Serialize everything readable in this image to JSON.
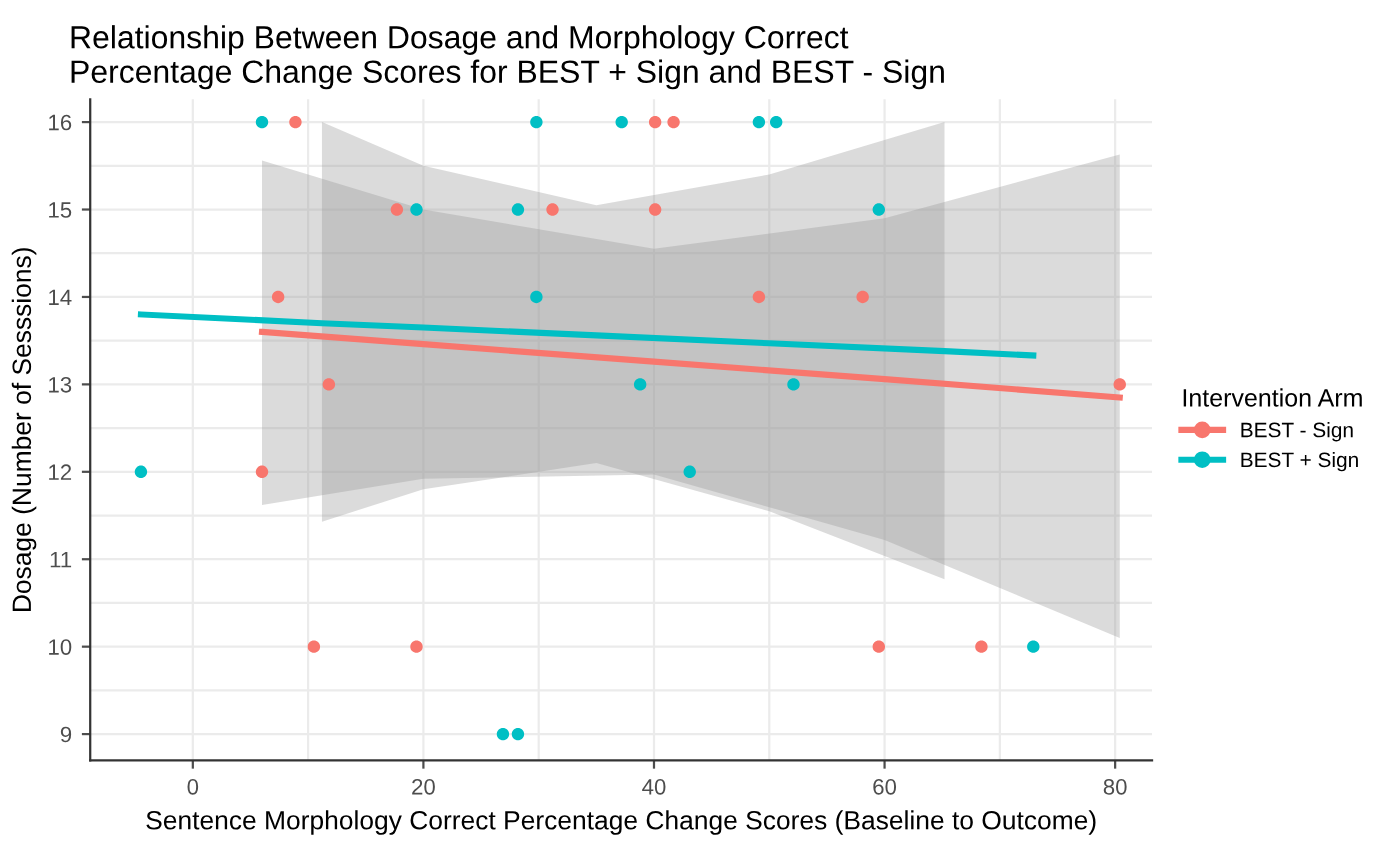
{
  "chart_data": {
    "type": "scatter",
    "title": "Relationship Between Dosage and Morphology Correct\nPercentage Change Scores for BEST + Sign and BEST - Sign",
    "xlabel": "Sentence Morphology Correct Percentage Change Scores (Baseline to Outcome)",
    "ylabel": "Dosage (Number of Sesssions)",
    "legend_title": "Intervention Arm",
    "legend": "right",
    "grid": true,
    "xlim": [
      -8.9,
      83.2
    ],
    "ylim": [
      8.7,
      16.26
    ],
    "xticks": [
      0,
      {
        "value": 10,
        "label": null
      },
      20,
      {
        "value": 30,
        "label": null
      },
      40,
      {
        "value": 50,
        "label": null
      },
      60,
      {
        "value": 70,
        "label": null
      },
      80
    ],
    "yticks": [
      9,
      {
        "value": 9.5,
        "label": null
      },
      10,
      {
        "value": 10.5,
        "label": null
      },
      11,
      {
        "value": 11.5,
        "label": null
      },
      12,
      {
        "value": 12.5,
        "label": null
      },
      13,
      {
        "value": 13.5,
        "label": null
      },
      14,
      {
        "value": 14.5,
        "label": null
      },
      15,
      {
        "value": 15.5,
        "label": null
      },
      16
    ],
    "series": [
      {
        "name": "BEST - Sign",
        "marker": "circle",
        "color": "#f8766d",
        "x": [
          8.9,
          17.7,
          31.2,
          40.1,
          41.7,
          40.1,
          7.4,
          11.8,
          49.1,
          58.1,
          6.0,
          80.4,
          10.5,
          19.4,
          59.5,
          68.4
        ],
        "values": [
          16,
          15,
          15,
          16,
          16,
          15,
          14,
          13,
          14,
          14,
          12,
          13,
          10,
          10,
          10,
          10
        ]
      },
      {
        "name": "BEST + Sign",
        "marker": "circle",
        "color": "#00bfc4",
        "x": [
          6.0,
          29.8,
          37.2,
          49.1,
          50.6,
          19.4,
          28.2,
          59.5,
          29.8,
          38.8,
          52.1,
          43.1,
          -4.5,
          26.9,
          28.2,
          72.9
        ],
        "values": [
          16,
          16,
          16,
          16,
          16,
          15,
          15,
          15,
          14,
          13,
          13,
          12,
          12,
          9,
          9,
          10
        ]
      },
      {
        "type": "line",
        "marker": "none",
        "color": "#f8766d",
        "x": [
          6,
          20,
          40,
          60,
          80.4
        ],
        "values": [
          13.6,
          13.46,
          13.26,
          13.06,
          12.85
        ],
        "lower": [
          11.62,
          11.92,
          11.97,
          11.22,
          10.1
        ],
        "upper": [
          15.56,
          15.0,
          14.55,
          14.9,
          15.63
        ]
      },
      {
        "type": "line",
        "marker": "none",
        "color": "#00bfc4",
        "x": [
          -4.5,
          11.2,
          20,
          35,
          50,
          65.2,
          72.9
        ],
        "values": [
          13.8,
          13.7,
          13.65,
          13.56,
          13.47,
          13.38,
          13.33
        ],
        "lower": [
          null,
          11.43,
          11.8,
          12.1,
          11.55,
          10.77,
          null
        ],
        "upper": [
          null,
          16.0,
          15.5,
          15.05,
          15.4,
          16.0,
          null
        ]
      }
    ]
  }
}
